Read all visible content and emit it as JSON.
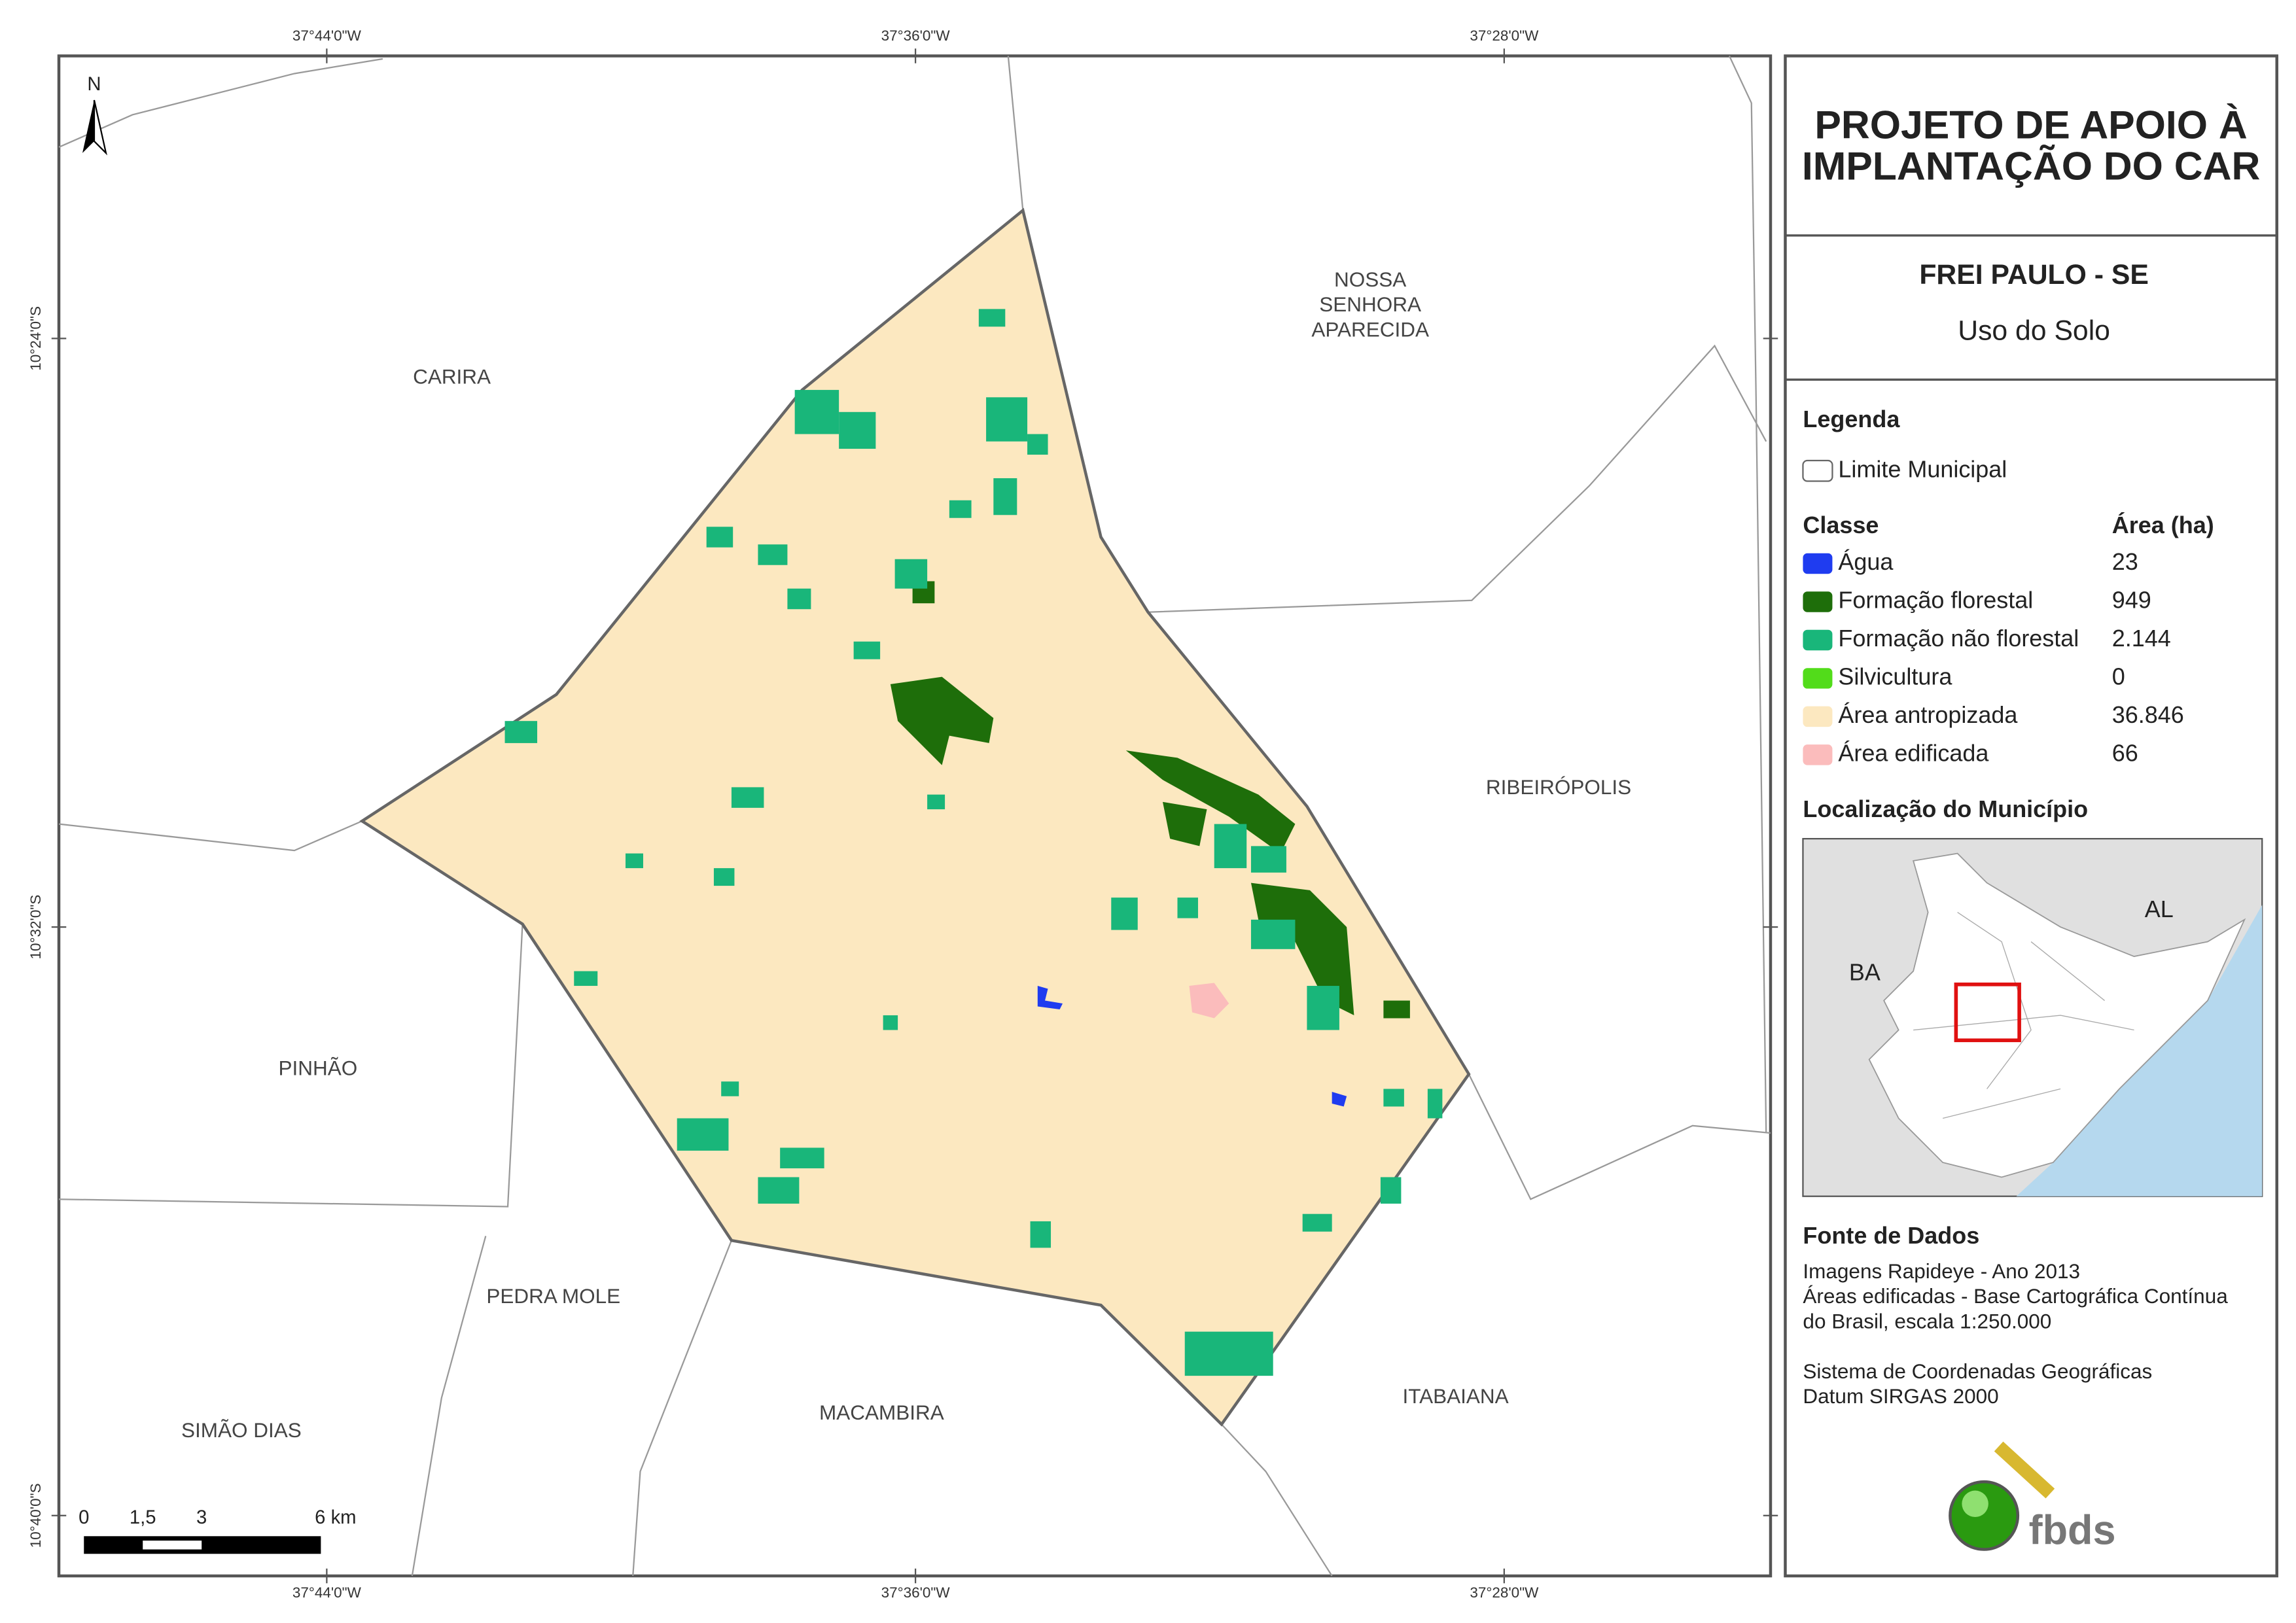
{
  "north_arrow": "N",
  "coordinates": {
    "top": [
      "37°44'0\"W",
      "37°36'0\"W",
      "37°28'0\"W"
    ],
    "bottom": [
      "37°44'0\"W",
      "37°36'0\"W",
      "37°28'0\"W"
    ],
    "left": [
      "10°24'0\"S",
      "10°32'0\"S",
      "10°40'0\"S"
    ]
  },
  "place_labels": [
    {
      "lines": [
        "CARIRA"
      ]
    },
    {
      "lines": [
        "NOSSA",
        "SENHORA",
        "APARECIDA"
      ]
    },
    {
      "lines": [
        "RIBEIRÓPOLIS"
      ]
    },
    {
      "lines": [
        "PINHÃO"
      ]
    },
    {
      "lines": [
        "PEDRA MOLE"
      ]
    },
    {
      "lines": [
        "SIMÃO DIAS"
      ]
    },
    {
      "lines": [
        "MACAMBIRA"
      ]
    },
    {
      "lines": [
        "ITABAIANA"
      ]
    }
  ],
  "scale_bar": [
    "0",
    "1,5",
    "3",
    "6 km"
  ],
  "header": {
    "title": [
      "PROJETO DE APOIO À",
      "IMPLANTAÇÃO DO CAR"
    ],
    "municipality": "FREI PAULO - SE",
    "subtitle": "Uso do Solo"
  },
  "legend": {
    "title": "Legenda",
    "boundary": "Limite Municipal",
    "class_header": "Classe",
    "area_header": "Área (ha)",
    "items": [
      {
        "label": "Água",
        "area": "23",
        "color": "#1f3cf0"
      },
      {
        "label": "Formação florestal",
        "area": "949",
        "color": "#1e6e0a"
      },
      {
        "label": "Formação não florestal",
        "area": "2.144",
        "color": "#19b67a"
      },
      {
        "label": "Silvicultura",
        "area": "0",
        "color": "#52dc1a"
      },
      {
        "label": "Área antropizada",
        "area": "36.846",
        "color": "#fce8c0"
      },
      {
        "label": "Área edificada",
        "area": "66",
        "color": "#fbbcbc"
      }
    ]
  },
  "location": {
    "title": "Localização do Município",
    "labels": [
      "BA",
      "AL"
    ]
  },
  "sources": {
    "title": "Fonte de Dados",
    "lines": [
      "Imagens Rapideye - Ano 2013",
      "Áreas edificadas - Base Cartográfica Contínua",
      "do Brasil, escala 1:250.000",
      "Sistema de Coordenadas Geográficas",
      "Datum SIRGAS 2000"
    ]
  },
  "logo": "fbds"
}
